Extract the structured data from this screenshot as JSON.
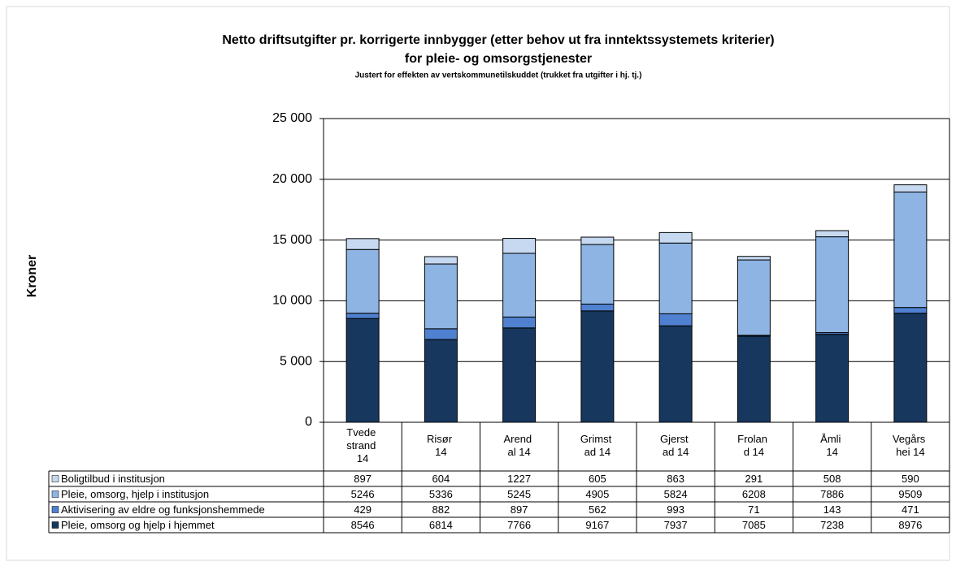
{
  "chart_data": {
    "type": "bar",
    "title": "Netto driftsutgifter pr. korrigerte innbygger (etter behov ut fra inntektssystemets kriterier)",
    "title_line2": "for pleie- og omsorgstjenester",
    "subtitle": "Justert for effekten av vertskommunetilskuddet (trukket fra utgifter i hj. tj.)",
    "y_label": "Kroner",
    "stacked": true,
    "grid": true,
    "categories": [
      "Tvede strand 14",
      "Risør 14",
      "Arend al 14",
      "Grimst ad 14",
      "Gjerst ad 14",
      "Frolan d 14",
      "Åmli 14",
      "Vegårs hei 14"
    ],
    "series": [
      {
        "name": "Boligtilbud i institusjon",
        "color": "#c6d9f1",
        "values": [
          897,
          604,
          1227,
          605,
          863,
          291,
          508,
          590
        ]
      },
      {
        "name": "Pleie, omsorg, hjelp i institusjon",
        "color": "#8eb4e3",
        "values": [
          5246,
          5336,
          5245,
          4905,
          5824,
          6208,
          7886,
          9509
        ]
      },
      {
        "name": "Aktivisering av eldre og funksjonshemmede",
        "color": "#4f81d0",
        "values": [
          429,
          882,
          897,
          562,
          993,
          71,
          143,
          471
        ]
      },
      {
        "name": "Pleie, omsorg og hjelp i hjemmet",
        "color": "#17375e",
        "values": [
          8546,
          6814,
          7766,
          9167,
          7937,
          7085,
          7238,
          8976
        ]
      }
    ],
    "ylim": [
      0,
      25000
    ],
    "yticks": [
      0,
      {
        "value": 5000,
        "label": "5 000"
      },
      {
        "value": 10000,
        "label": "10 000"
      },
      {
        "value": 15000,
        "label": "15 000"
      },
      {
        "value": 20000,
        "label": "20 000"
      },
      {
        "value": 25000,
        "label": "25 000"
      }
    ]
  }
}
